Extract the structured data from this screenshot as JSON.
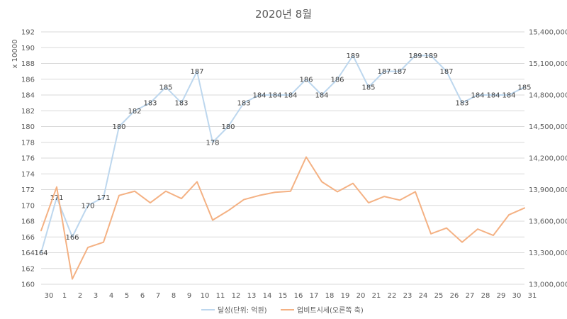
{
  "chart_data": {
    "type": "line",
    "title": "2020년 8월",
    "y_unit_label": "x 10000",
    "categories": [
      "30",
      "1",
      "2",
      "3",
      "4",
      "5",
      "6",
      "7",
      "8",
      "9",
      "10",
      "11",
      "12",
      "13",
      "14",
      "15",
      "16",
      "17",
      "18",
      "19",
      "20",
      "21",
      "22",
      "23",
      "24",
      "25",
      "26",
      "27",
      "28",
      "29",
      "30",
      "31"
    ],
    "ylim": [
      160,
      192
    ],
    "y2lim": [
      13000000,
      15400000
    ],
    "y_ticks": [
      160,
      162,
      164,
      166,
      168,
      170,
      172,
      174,
      176,
      178,
      180,
      182,
      184,
      186,
      188,
      190,
      192
    ],
    "y2_ticks": [
      "13,000,000",
      "13,300,000",
      "13,600,000",
      "13,900,000",
      "14,200,000",
      "14,500,000",
      "14,800,000",
      "15,100,000",
      "15,400,000"
    ],
    "y2_tick_values": [
      13000000,
      13300000,
      13600000,
      13900000,
      14200000,
      14500000,
      14800000,
      15100000,
      15400000
    ],
    "grid": true,
    "legend_position": "bottom",
    "series": [
      {
        "name": "달성(단위: 억원)",
        "axis": "left",
        "color": "#bdd7ee",
        "show_labels": true,
        "values": [
          164,
          171,
          166,
          170,
          171,
          180,
          182,
          183,
          185,
          183,
          187,
          178,
          180,
          183,
          184,
          184,
          184,
          186,
          184,
          186,
          189,
          185,
          187,
          187,
          189,
          189,
          187,
          183,
          184,
          184,
          184,
          185
        ]
      },
      {
        "name": "업비트시세(오른쪽 축)",
        "axis": "right",
        "color": "#f4b183",
        "show_labels": false,
        "values": [
          13510000,
          13925000,
          13050000,
          13350000,
          13400000,
          13845000,
          13885000,
          13775000,
          13885000,
          13815000,
          13975000,
          13610000,
          13700000,
          13805000,
          13845000,
          13875000,
          13885000,
          14210000,
          13975000,
          13880000,
          13960000,
          13775000,
          13835000,
          13800000,
          13880000,
          13480000,
          13535000,
          13400000,
          13525000,
          13465000,
          13660000,
          13725000
        ]
      }
    ]
  }
}
